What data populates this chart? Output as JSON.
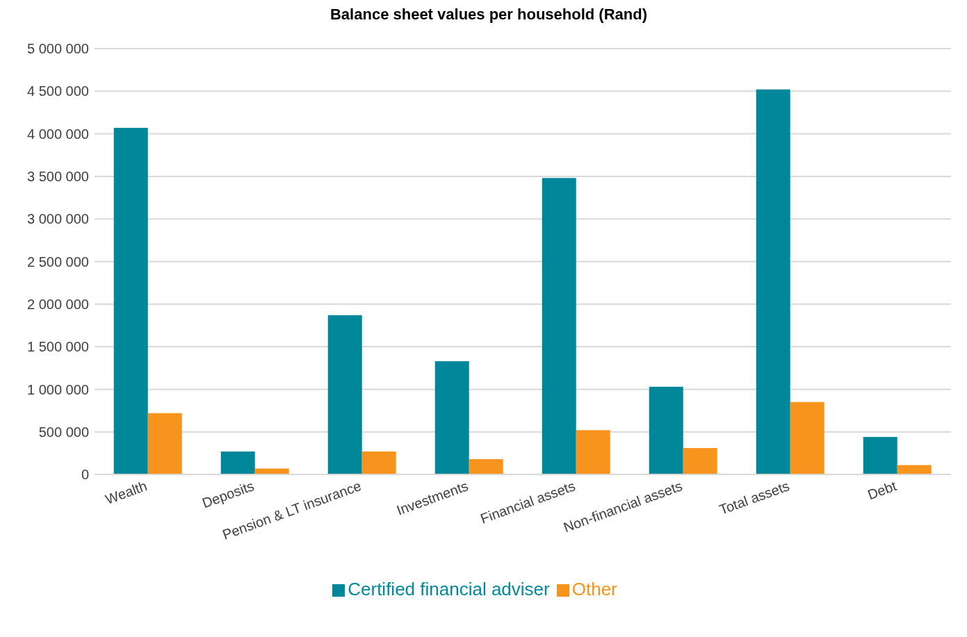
{
  "chart_data": {
    "type": "bar",
    "title": "Balance sheet values per household (Rand)",
    "categories": [
      "Wealth",
      "Deposits",
      "Pension & LT insurance",
      "Investments",
      "Financial assets",
      "Non-financial assets",
      "Total assets",
      "Debt"
    ],
    "series": [
      {
        "name": "Certified financial adviser",
        "color": "#00889a",
        "values": [
          4070000,
          270000,
          1870000,
          1330000,
          3480000,
          1030000,
          4520000,
          440000
        ]
      },
      {
        "name": "Other",
        "color": "#f7941d",
        "values": [
          720000,
          70000,
          270000,
          180000,
          520000,
          310000,
          850000,
          110000
        ]
      }
    ],
    "ylim": [
      0,
      5000000
    ],
    "yticks": [
      {
        "value": 0,
        "label": "0"
      },
      {
        "value": 500000,
        "label": "500 000"
      },
      {
        "value": 1000000,
        "label": "1 000 000"
      },
      {
        "value": 1500000,
        "label": "1 500 000"
      },
      {
        "value": 2000000,
        "label": "2 000 000"
      },
      {
        "value": 2500000,
        "label": "2 500 000"
      },
      {
        "value": 3000000,
        "label": "3 000 000"
      },
      {
        "value": 3500000,
        "label": "3 500 000"
      },
      {
        "value": 4000000,
        "label": "4 000 000"
      },
      {
        "value": 4500000,
        "label": "4 500 000"
      },
      {
        "value": 5000000,
        "label": "5 000 000"
      }
    ],
    "grid": "y",
    "legend": "bottom"
  }
}
